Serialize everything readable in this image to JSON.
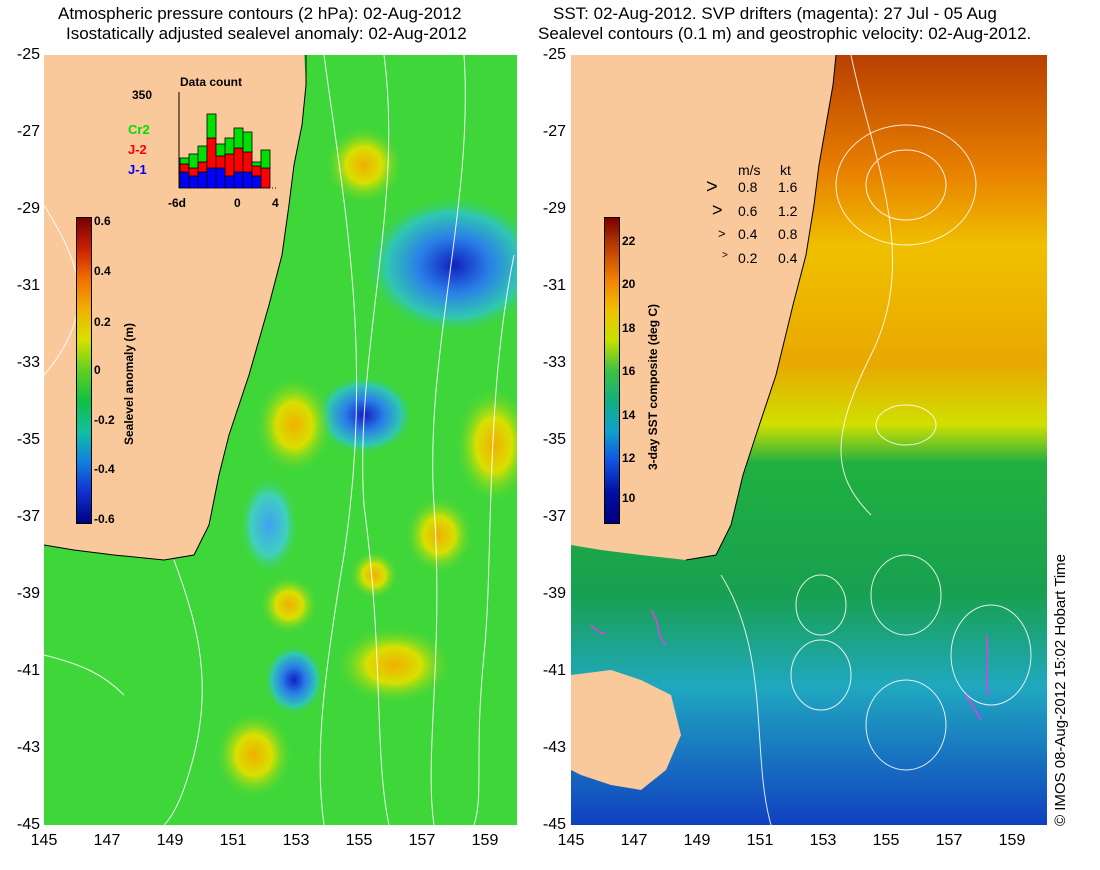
{
  "left_panel": {
    "title_line1": "Atmospheric pressure contours (2 hPa): 02-Aug-2012",
    "title_line2": "Isostatically adjusted sealevel anomaly: 02-Aug-2012",
    "colorbar": {
      "label": "Sealevel anomaly (m)",
      "ticks": [
        "0.6",
        "0.4",
        "0.2",
        "0",
        "-0.2",
        "-0.4",
        "-0.6"
      ],
      "range": [
        -0.6,
        0.6
      ]
    },
    "data_count": {
      "title": "Data count",
      "max_label": "350",
      "series_labels": [
        "Cr2",
        "J-2",
        "J-1"
      ],
      "series_colors": [
        "#00e000",
        "#ff0000",
        "#0000ff"
      ],
      "x_ticks": [
        "-6d",
        "0",
        "4"
      ]
    }
  },
  "right_panel": {
    "title_line1": "SST: 02-Aug-2012. SVP drifters (magenta): 27 Jul - 05 Aug",
    "title_line2": "Sealevel contours (0.1 m) and geostrophic velocity: 02-Aug-2012.",
    "colorbar": {
      "label": "3-day SST composite (deg C)",
      "ticks": [
        "22",
        "20",
        "18",
        "16",
        "14",
        "12",
        "10"
      ],
      "range": [
        9,
        23
      ]
    },
    "velocity_legend": {
      "header_ms": "m/s",
      "header_kt": "kt",
      "rows": [
        {
          "ms": "0.8",
          "kt": "1.6"
        },
        {
          "ms": "0.6",
          "kt": "1.2"
        },
        {
          "ms": "0.4",
          "kt": "0.8"
        },
        {
          "ms": "0.2",
          "kt": "0.4"
        }
      ]
    }
  },
  "axes": {
    "lat_labels": [
      "-25",
      "-27",
      "-29",
      "-31",
      "-33",
      "-35",
      "-37",
      "-39",
      "-41",
      "-43",
      "-45"
    ],
    "lon_labels": [
      "145",
      "147",
      "149",
      "151",
      "153",
      "155",
      "157",
      "159"
    ]
  },
  "credit": "© IMOS 08-Aug-2012 15:02 Hobart Time",
  "colors": {
    "land": "#f9c89b",
    "ocean_base_left": "#3fd63a",
    "ocean_base_right_south": "#1eae4a",
    "ocean_base_right_north": "#e8c800"
  }
}
